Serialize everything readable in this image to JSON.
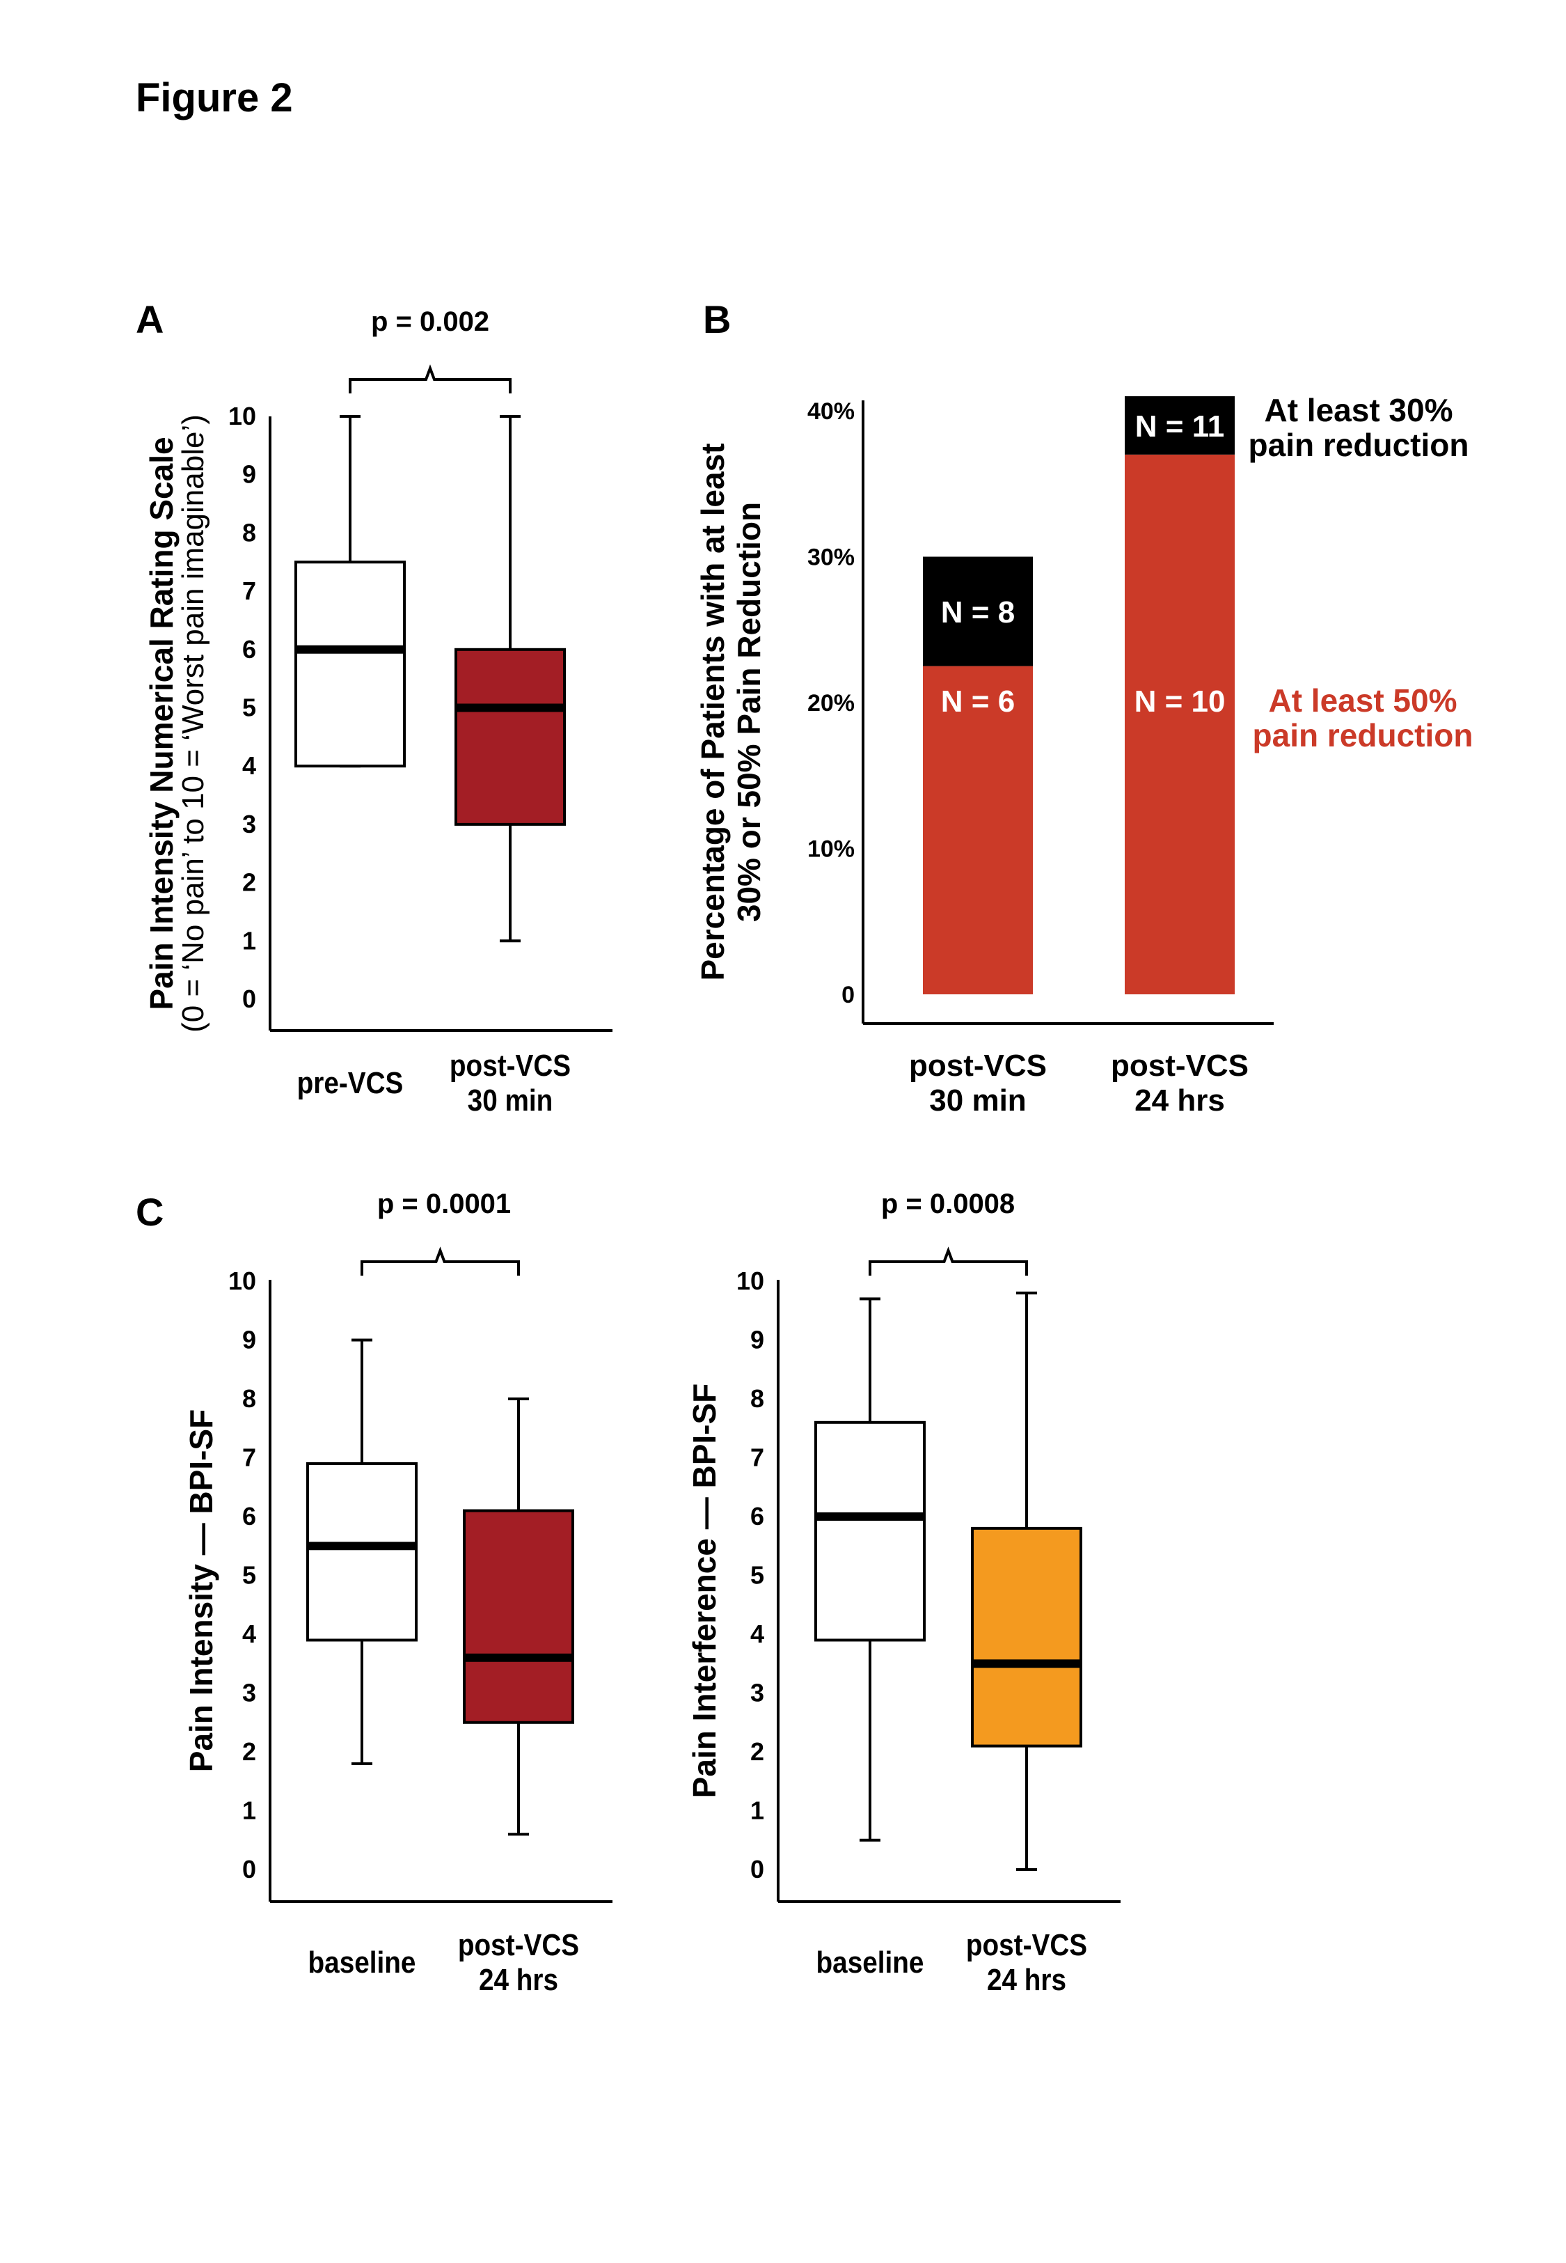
{
  "figure_title": "Figure 2",
  "colors": {
    "dark_red": "#a31e25",
    "red": "#cb3a28",
    "black": "#000000",
    "orange": "#f49a1f",
    "white": "#ffffff"
  },
  "chart_data": [
    {
      "id": "A",
      "panel_label": "A",
      "type": "boxplot",
      "ylabel_main": "Pain Intensity Numerical Rating Scale",
      "ylabel_sub": "(0 = ‘No pain’ to 10 = ‘Worst pain imaginable’)",
      "ylim": [
        0,
        10
      ],
      "yticks": [
        "0",
        "1",
        "2",
        "3",
        "4",
        "5",
        "6",
        "7",
        "8",
        "9",
        "10"
      ],
      "categories": [
        "pre-VCS",
        "post-VCS 30 min"
      ],
      "category_lines": [
        [
          "pre-VCS"
        ],
        [
          "post-VCS",
          "30 min"
        ]
      ],
      "boxes": [
        {
          "name": "pre-VCS",
          "min": 4,
          "q1": 4,
          "median": 6,
          "q3": 7.5,
          "max": 10,
          "fill": "#ffffff"
        },
        {
          "name": "post-VCS 30 min",
          "min": 1,
          "q1": 3,
          "median": 5,
          "q3": 6,
          "max": 10,
          "fill": "#a31e25"
        }
      ],
      "pvalue": "p = 0.002"
    },
    {
      "id": "B",
      "panel_label": "B",
      "type": "stacked_bar",
      "ylabel_line1": "Percentage of Patients with at least",
      "ylabel_line2": "30% or 50% Pain Reduction",
      "ylim": [
        0,
        40
      ],
      "yticks": [
        "0",
        "10%",
        "20%",
        "30%",
        "40%"
      ],
      "categories": [
        "post-VCS 30 min",
        "post-VCS 24 hrs"
      ],
      "category_lines": [
        [
          "post-VCS",
          "30 min"
        ],
        [
          "post-VCS",
          "24 hrs"
        ]
      ],
      "series": [
        {
          "name": "At least 50% pain reduction",
          "color": "#cb3a28",
          "values": [
            22.5,
            37
          ],
          "labels": [
            "N = 6",
            "N = 10"
          ]
        },
        {
          "name": "At least 30% pain reduction",
          "color": "#000000",
          "values": [
            7.5,
            4
          ],
          "labels": [
            "N = 8",
            "N = 11"
          ]
        }
      ],
      "legend_30": [
        "At least 30%",
        "pain reduction"
      ],
      "legend_50": [
        "At least 50%",
        "pain reduction"
      ]
    },
    {
      "id": "C1",
      "panel_label": "C",
      "type": "boxplot",
      "ylabel_main": "Pain Intensity — BPI-SF",
      "ylabel_sub": "",
      "ylim": [
        0,
        10
      ],
      "yticks": [
        "0",
        "1",
        "2",
        "3",
        "4",
        "5",
        "6",
        "7",
        "8",
        "9",
        "10"
      ],
      "categories": [
        "baseline",
        "post-VCS 24 hrs"
      ],
      "category_lines": [
        [
          "baseline"
        ],
        [
          "post-VCS",
          "24 hrs"
        ]
      ],
      "boxes": [
        {
          "name": "baseline",
          "min": 1.8,
          "q1": 3.9,
          "median": 5.5,
          "q3": 6.9,
          "max": 9,
          "fill": "#ffffff"
        },
        {
          "name": "post-VCS 24 hrs",
          "min": 0.6,
          "q1": 2.5,
          "median": 3.6,
          "q3": 6.1,
          "max": 8,
          "fill": "#a31e25"
        }
      ],
      "pvalue": "p = 0.0001"
    },
    {
      "id": "C2",
      "panel_label": "",
      "type": "boxplot",
      "ylabel_main": "Pain Interference — BPI-SF",
      "ylabel_sub": "",
      "ylim": [
        0,
        10
      ],
      "yticks": [
        "0",
        "1",
        "2",
        "3",
        "4",
        "5",
        "6",
        "7",
        "8",
        "9",
        "10"
      ],
      "categories": [
        "baseline",
        "post-VCS 24 hrs"
      ],
      "category_lines": [
        [
          "baseline"
        ],
        [
          "post-VCS",
          "24 hrs"
        ]
      ],
      "boxes": [
        {
          "name": "baseline",
          "min": 0.5,
          "q1": 3.9,
          "median": 6,
          "q3": 7.6,
          "max": 9.7,
          "fill": "#ffffff"
        },
        {
          "name": "post-VCS 24 hrs",
          "min": 0,
          "q1": 2.1,
          "median": 3.5,
          "q3": 5.8,
          "max": 9.8,
          "fill": "#f49a1f"
        }
      ],
      "pvalue": "p = 0.0008"
    }
  ]
}
